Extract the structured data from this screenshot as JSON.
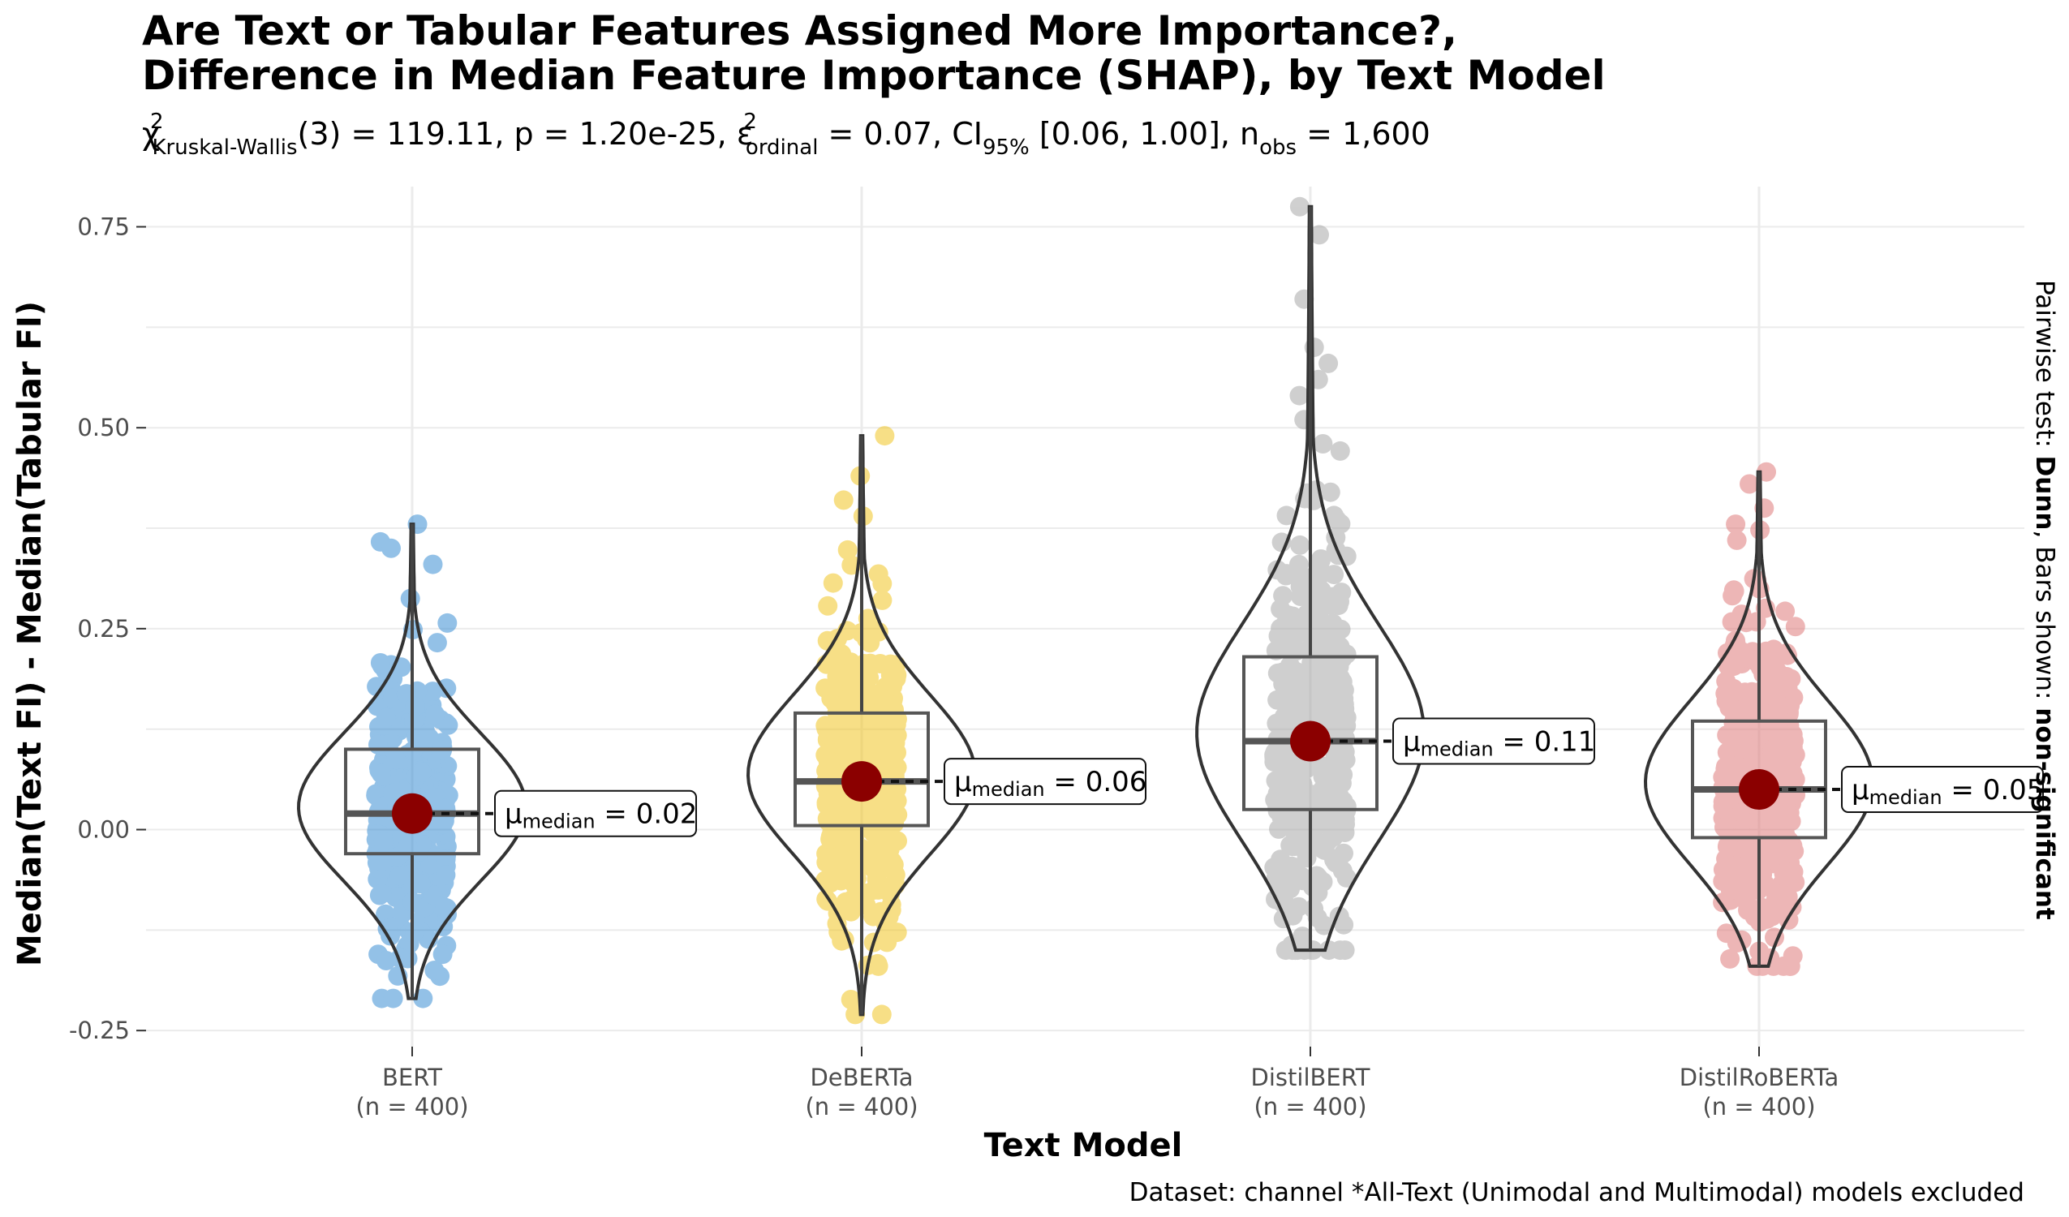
{
  "chart_data": {
    "type": "violin",
    "title_lines": [
      "Are Text or Tabular Features Assigned More Importance?,",
      "Difference in Median Feature Importance (SHAP), by Text Model"
    ],
    "subtitle": {
      "chi_symbol": "χ",
      "chi_sup": "2",
      "chi_sub": "Kruskal-Wallis",
      "df_part": "(3) = 119.11, p = 1.20e-25, ",
      "eps_symbol": "ε",
      "eps_sup": "2",
      "eps_sub": "ordinal",
      "ci_part1": " = 0.07, CI",
      "ci_sub": "95%",
      "ci_part2": " [0.06, 1.00], n",
      "n_sub": "obs",
      "n_part": " = 1,600"
    },
    "xlabel": "Text Model",
    "ylabel": "Median(Text FI) - Median(Tabular FI)",
    "right_label_prefix": "Pairwise test: ",
    "right_label_bold1": "Dunn",
    "right_label_mid": ", Bars shown: ",
    "right_label_bold2": "non-significant",
    "caption": "Dataset:  channel *All-Text (Unimodal and Multimodal) models excluded",
    "ylim": [
      -0.27,
      0.8
    ],
    "yticks": [
      -0.25,
      0.0,
      0.25,
      0.5,
      0.75
    ],
    "ytick_labels": [
      "-0.25",
      "0.00",
      "0.25",
      "0.50",
      "0.75"
    ],
    "median_label_prefix": "μ",
    "median_label_sub": "median",
    "groups": [
      {
        "name": "BERT",
        "n_label": "(n = 400)",
        "color": "#3b8fd4",
        "q1": -0.03,
        "median": 0.02,
        "q3": 0.1,
        "whisker_low": -0.21,
        "whisker_high": 0.38,
        "median_label": " = 0.02",
        "min": -0.21,
        "max": 0.38,
        "outliers": [
          0.38,
          0.35,
          0.33,
          -0.16,
          -0.21
        ]
      },
      {
        "name": "DeBERTa",
        "n_label": "(n = 400)",
        "color": "#f2c624",
        "q1": 0.005,
        "median": 0.06,
        "q3": 0.145,
        "whisker_low": -0.23,
        "whisker_high": 0.49,
        "median_label": " = 0.06",
        "min": -0.23,
        "max": 0.49,
        "outliers": [
          0.49,
          0.44,
          0.41,
          0.39,
          -0.17,
          -0.23
        ]
      },
      {
        "name": "DistilBERT",
        "n_label": "(n = 400)",
        "color": "#a9a9a9",
        "q1": 0.025,
        "median": 0.11,
        "q3": 0.215,
        "whisker_low": -0.15,
        "whisker_high": 0.775,
        "median_label": " = 0.11",
        "min": -0.15,
        "max": 0.775,
        "outliers": [
          0.775,
          0.74,
          0.66,
          0.6,
          0.58,
          0.56,
          0.54,
          0.51,
          0.48,
          -0.15
        ]
      },
      {
        "name": "DistilRoBERTa",
        "n_label": "(n = 400)",
        "color": "#e07b7b",
        "q1": -0.01,
        "median": 0.05,
        "q3": 0.135,
        "whisker_low": -0.17,
        "whisker_high": 0.445,
        "median_label": " = 0.05",
        "min": -0.17,
        "max": 0.445,
        "outliers": [
          0.445,
          0.43,
          0.4,
          0.38,
          0.36,
          -0.16,
          -0.17
        ]
      }
    ],
    "grid": true
  }
}
